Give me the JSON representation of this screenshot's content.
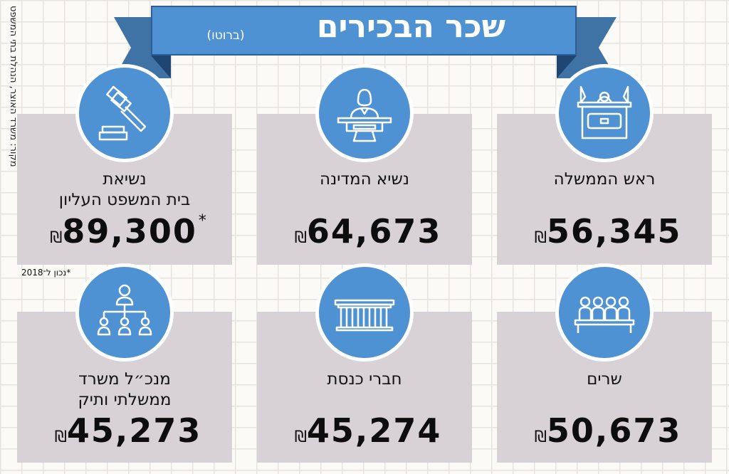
{
  "header": {
    "title": "שכר הבכירים",
    "subtitle": "(ברוטו)"
  },
  "source": "מקור: משרד האוצר, הנהלת בתי המשפט",
  "currency_symbol": "₪",
  "footnote": "*נכון ל־2018",
  "colors": {
    "accent": "#4f92d3",
    "ribbon_dark": "#3f73a6",
    "card": "#d8d1d6"
  },
  "cards": [
    {
      "label_lines": [
        "ראש הממשלה",
        ""
      ],
      "amount": "56,345",
      "marker": "",
      "icon": "podium-icon"
    },
    {
      "label_lines": [
        "נשיא המדינה",
        ""
      ],
      "amount": "64,673",
      "marker": "",
      "icon": "lectern-speaker-icon"
    },
    {
      "label_lines": [
        "נשיאת",
        "בית המשפט העליון"
      ],
      "amount": "89,300",
      "marker": "*",
      "icon": "gavel-icon"
    },
    {
      "label_lines": [
        "שרים",
        ""
      ],
      "amount": "50,673",
      "marker": "",
      "icon": "ministers-table-icon"
    },
    {
      "label_lines": [
        "חברי כנסת",
        ""
      ],
      "amount": "45,274",
      "marker": "",
      "icon": "knesset-building-icon"
    },
    {
      "label_lines": [
        "מנכ״ל משרד",
        "ממשלתי ותיק"
      ],
      "amount": "45,273",
      "marker": "",
      "icon": "org-chart-icon"
    }
  ]
}
